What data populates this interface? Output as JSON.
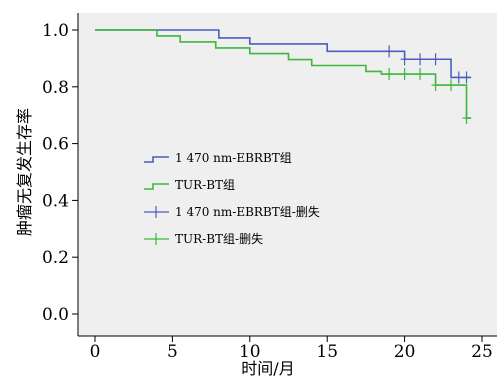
{
  "chart_data": {
    "type": "line",
    "step": true,
    "xlabel": "时间/月",
    "ylabel": "肿瘤无复发生存率",
    "xlim": [
      0,
      25
    ],
    "ylim": [
      0,
      1.05
    ],
    "x_ticks": [
      0,
      5,
      10,
      15,
      20,
      25
    ],
    "y_ticks": [
      0.0,
      0.2,
      0.4,
      0.6,
      0.8,
      1.0
    ],
    "x_tick_labels": [
      "0",
      "5",
      "10",
      "15",
      "20",
      "25"
    ],
    "y_tick_labels": [
      "0.0",
      "0.2",
      "0.4",
      "0.6",
      "0.8",
      "1.0"
    ],
    "grid": false,
    "legend_position": "center-left",
    "plot_background": "#efefef",
    "series": [
      {
        "name": "1 470 nm-EBRBT组",
        "color": "#4a5fbf",
        "x": [
          0,
          8,
          10,
          12,
          15,
          20,
          23,
          24.3
        ],
        "y": [
          1.0,
          0.972,
          0.951,
          0.951,
          0.925,
          0.897,
          0.833,
          0.833
        ]
      },
      {
        "name": "TUR-BT组",
        "color": "#3cb83c",
        "x": [
          0,
          4,
          5.5,
          7.8,
          10,
          12.5,
          14,
          17.5,
          18.5,
          22,
          24,
          24.3
        ],
        "y": [
          1.0,
          0.979,
          0.958,
          0.937,
          0.917,
          0.896,
          0.875,
          0.854,
          0.845,
          0.806,
          0.69,
          0.69
        ]
      }
    ],
    "censored": [
      {
        "name": "1 470 nm-EBRBT组-删失",
        "color": "#4a5fbf",
        "x": [
          19,
          20,
          21,
          22,
          23.5,
          24
        ],
        "y": [
          0.925,
          0.897,
          0.897,
          0.897,
          0.833,
          0.833
        ]
      },
      {
        "name": "TUR-BT组-删失",
        "color": "#3cb83c",
        "x": [
          19,
          20,
          21,
          22,
          23,
          24
        ],
        "y": [
          0.845,
          0.845,
          0.845,
          0.806,
          0.806,
          0.69
        ]
      }
    ],
    "legend": [
      {
        "label": "1 470 nm-EBRBT组",
        "kind": "line",
        "color": "#4a5fbf"
      },
      {
        "label": "TUR-BT组",
        "kind": "line",
        "color": "#3cb83c"
      },
      {
        "label": "1 470 nm-EBRBT组-删失",
        "kind": "censor",
        "color": "#4a5fbf"
      },
      {
        "label": "TUR-BT组-删失",
        "kind": "censor",
        "color": "#3cb83c"
      }
    ]
  }
}
